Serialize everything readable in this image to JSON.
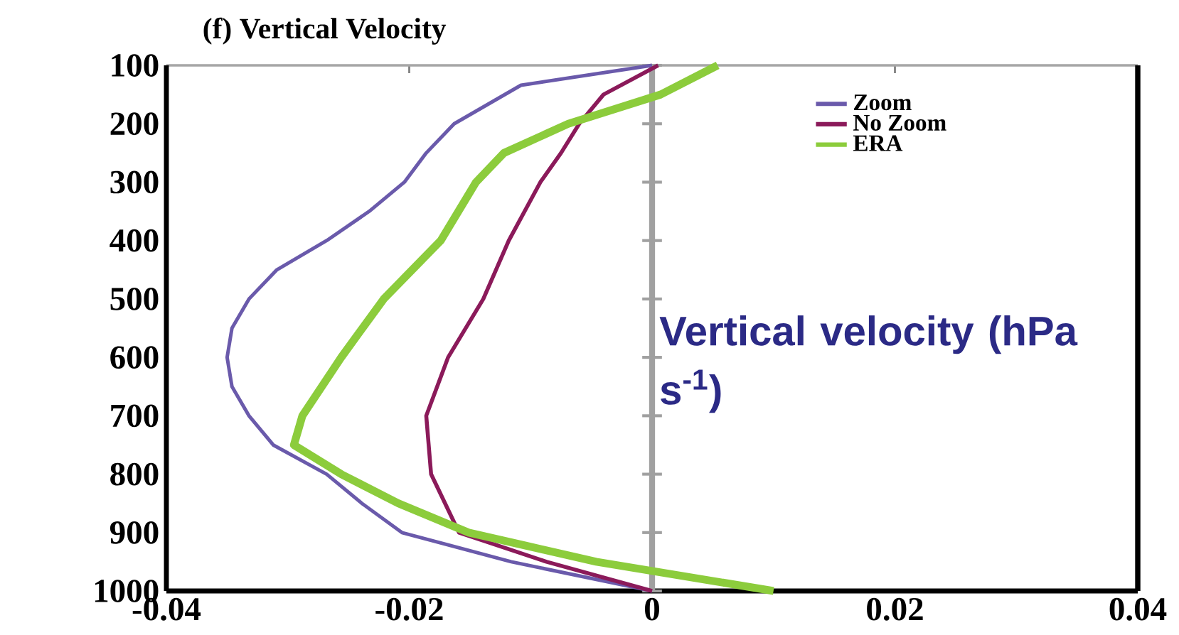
{
  "chart_data": {
    "type": "line",
    "title": "(f) Vertical Velocity",
    "series": [
      {
        "name": "Zoom",
        "color": "#6a5aab",
        "x": [
          0,
          -0.0108,
          -0.0163,
          -0.0186,
          -0.0204,
          -0.0233,
          -0.0268,
          -0.0309,
          -0.0332,
          -0.0346,
          -0.035,
          -0.0346,
          -0.0332,
          -0.0312,
          -0.0268,
          -0.0239,
          -0.0206,
          -0.0116,
          0
        ],
        "values": [
          100,
          134,
          200,
          250,
          300,
          350,
          400,
          450,
          500,
          550,
          600,
          650,
          700,
          750,
          800,
          850,
          900,
          950,
          1000
        ]
      },
      {
        "name": "No Zoom",
        "color": "#8b1a5a",
        "x": [
          0.0005,
          -0.004,
          -0.006,
          -0.0075,
          -0.0092,
          -0.0118,
          -0.0139,
          -0.0168,
          -0.0186,
          -0.0182,
          -0.0159,
          -0.0087,
          0
        ],
        "values": [
          100,
          150,
          200,
          250,
          300,
          400,
          500,
          600,
          700,
          800,
          900,
          950,
          1000
        ]
      },
      {
        "name": "ERA",
        "color": "#8ccc3c",
        "x": [
          0.0054,
          0.0007,
          -0.0069,
          -0.0122,
          -0.0145,
          -0.0174,
          -0.0221,
          -0.0256,
          -0.0288,
          -0.0295,
          -0.0256,
          -0.0209,
          -0.0151,
          -0.0046,
          0.01
        ],
        "values": [
          100,
          150,
          200,
          250,
          300,
          400,
          500,
          600,
          700,
          750,
          800,
          850,
          900,
          950,
          1000
        ]
      }
    ],
    "xlim": [
      -0.04,
      0.04
    ],
    "xticks": [
      -0.04,
      -0.02,
      0,
      0.02,
      0.04
    ],
    "ylim": [
      1000,
      100
    ],
    "yticks": [
      100,
      200,
      300,
      400,
      500,
      600,
      700,
      800,
      900,
      1000
    ],
    "ref_lines": [
      {
        "axis": "x",
        "value": 0,
        "color": "#a0a0a0"
      }
    ],
    "legend": "top right",
    "grid": false,
    "annotations": [
      "Vertical velocity (hPa s$^{-1}$)"
    ]
  }
}
